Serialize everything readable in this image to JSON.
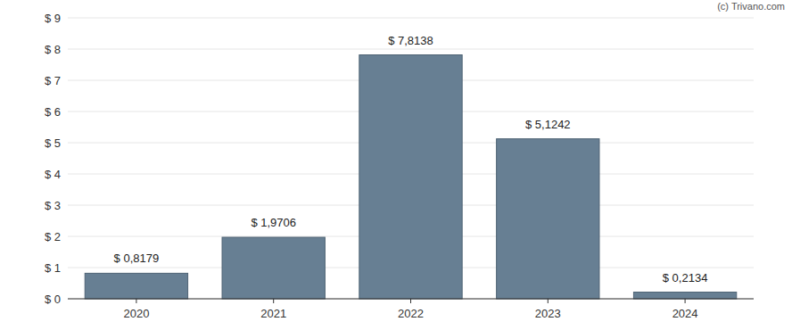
{
  "chart_data": {
    "type": "bar",
    "annotations": [
      "(c) Trivano.com"
    ],
    "categories": [
      "2020",
      "2021",
      "2022",
      "2023",
      "2024"
    ],
    "values": [
      0.8179,
      1.9706,
      7.8138,
      5.1242,
      0.2134
    ],
    "value_labels": [
      "$ 0,8179",
      "$ 1,9706",
      "$ 7,8138",
      "$ 5,1242",
      "$ 0,2134"
    ],
    "color": "#677f93",
    "ylim": [
      0,
      9
    ],
    "yticks": [
      {
        "value": 0,
        "label": "$ 0"
      },
      {
        "value": 1,
        "label": "$ 1"
      },
      {
        "value": 2,
        "label": "$ 2"
      },
      {
        "value": 3,
        "label": "$ 3"
      },
      {
        "value": 4,
        "label": "$ 4"
      },
      {
        "value": 5,
        "label": "$ 5"
      },
      {
        "value": 6,
        "label": "$ 6"
      },
      {
        "value": 7,
        "label": "$ 7"
      },
      {
        "value": 8,
        "label": "$ 8"
      },
      {
        "value": 9,
        "label": "$ 9"
      }
    ],
    "grid": true,
    "data_labels": true
  }
}
